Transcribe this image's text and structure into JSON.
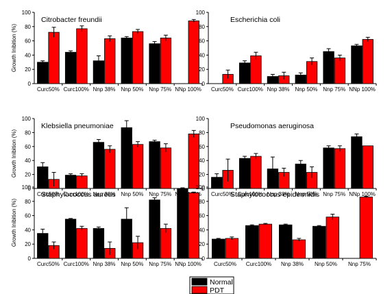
{
  "colors": {
    "normal": "#000000",
    "pdt": "#ff0000",
    "axis": "#000000"
  },
  "legend": {
    "items": [
      "Normal",
      "PDT"
    ],
    "placement": "bottom-center"
  },
  "chart_data": [
    {
      "type": "bar",
      "title": "Citrobacter freundii",
      "ylabel": "Growth Inibition (%)",
      "ylim": [
        0,
        100
      ],
      "yticks": [
        0,
        20,
        40,
        60,
        80,
        100
      ],
      "categories": [
        "Curc50%",
        "Curc100%",
        "Nnp 38%",
        "Nnp 50%",
        "Nnp 75%",
        "NNp 100%"
      ],
      "series": [
        {
          "name": "Normal",
          "values": [
            30,
            44,
            32,
            64,
            56,
            null
          ],
          "errors": [
            2,
            2,
            7,
            2,
            3,
            null
          ]
        },
        {
          "name": "PDT",
          "values": [
            72,
            77,
            63,
            73,
            64,
            88
          ],
          "errors": [
            7,
            4,
            4,
            3,
            4,
            2
          ]
        }
      ]
    },
    {
      "type": "bar",
      "title": "Escherichia coli",
      "ylabel": "",
      "ylim": [
        0,
        100
      ],
      "yticks": [
        0,
        20,
        40,
        60,
        80,
        100
      ],
      "categories": [
        "Curc50%",
        "Curc100%",
        "Nnp 38%",
        "Nnp 50%",
        "Nnp 75%",
        "NNp 100%"
      ],
      "series": [
        {
          "name": "Normal",
          "values": [
            null,
            29,
            10,
            12,
            45,
            53
          ],
          "errors": [
            null,
            3,
            3,
            3,
            4,
            2
          ]
        },
        {
          "name": "PDT",
          "values": [
            13,
            39,
            11,
            31,
            36,
            62
          ],
          "errors": [
            6,
            5,
            5,
            5,
            4,
            3
          ]
        }
      ]
    },
    {
      "type": "bar",
      "title": "Klebsiella pneumoniae",
      "ylabel": "Growth Inibition (%)",
      "ylim": [
        0,
        100
      ],
      "yticks": [
        0,
        20,
        40,
        60,
        80,
        100
      ],
      "categories": [
        "Curc50%",
        "Curc100%",
        "Nnp 38%",
        "Nnp 50%",
        "Nnp 75%",
        "NNp 100%"
      ],
      "series": [
        {
          "name": "Normal",
          "values": [
            31,
            19,
            66,
            87,
            67,
            null
          ],
          "errors": [
            6,
            2,
            4,
            10,
            2,
            null
          ]
        },
        {
          "name": "PDT",
          "values": [
            13,
            18,
            56,
            63,
            58,
            78
          ],
          "errors": [
            10,
            3,
            5,
            4,
            6,
            5
          ]
        }
      ]
    },
    {
      "type": "bar",
      "title": "Pseudomonas aeruginosa",
      "ylabel": "",
      "ylim": [
        0,
        100
      ],
      "yticks": [
        0,
        20,
        40,
        60,
        80,
        100
      ],
      "categories": [
        "Curc50%",
        "Curc100%",
        "Nnp 38%",
        "Nnp 50%",
        "Nnp 75%",
        "NNp 100%"
      ],
      "series": [
        {
          "name": "Normal",
          "values": [
            16,
            43,
            28,
            35,
            58,
            74
          ],
          "errors": [
            5,
            3,
            17,
            5,
            3,
            4
          ]
        },
        {
          "name": "PDT",
          "values": [
            26,
            46,
            23,
            23,
            57,
            61
          ],
          "errors": [
            16,
            4,
            6,
            8,
            4,
            0
          ]
        }
      ]
    },
    {
      "type": "bar",
      "title": "Staphylococcus aureus",
      "ylabel": "Growth Inibition (%)",
      "ylim": [
        0,
        100
      ],
      "yticks": [
        0,
        20,
        40,
        60,
        80,
        100
      ],
      "categories": [
        "Curc50%",
        "Curc100%",
        "Nnp 38%",
        "Nnp 50%",
        "Nnp 75%",
        "NNp 100%"
      ],
      "series": [
        {
          "name": "Normal",
          "values": [
            35,
            55,
            42,
            55,
            82,
            98
          ],
          "errors": [
            6,
            1,
            2,
            16,
            3,
            1
          ]
        },
        {
          "name": "PDT",
          "values": [
            18,
            42,
            14,
            22,
            42,
            92
          ],
          "errors": [
            5,
            3,
            9,
            9,
            6,
            1
          ]
        }
      ]
    },
    {
      "type": "bar",
      "title": "Staphylococcus epidermidis",
      "ylabel": "",
      "ylim": [
        0,
        100
      ],
      "yticks": [
        0,
        20,
        40,
        60,
        80,
        100
      ],
      "categories": [
        "Curc50%",
        "Curc100%",
        "Nnp 38%",
        "Nnp 50%",
        "Nnp 75%"
      ],
      "series": [
        {
          "name": "Normal",
          "values": [
            27,
            46,
            47,
            45,
            null
          ],
          "errors": [
            1,
            1,
            1,
            1,
            null
          ]
        },
        {
          "name": "PDT",
          "values": [
            28,
            48,
            26,
            58,
            86
          ],
          "errors": [
            2,
            1,
            2,
            4,
            1
          ]
        }
      ]
    }
  ]
}
